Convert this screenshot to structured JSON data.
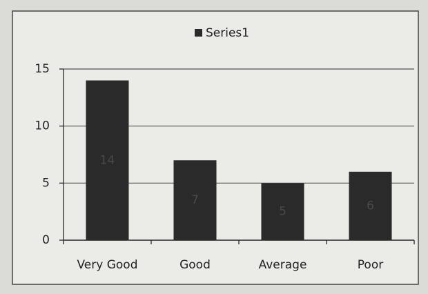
{
  "chart_data": {
    "type": "bar",
    "legend_position": "top",
    "categories": [
      "Very Good",
      "Good",
      "Average",
      "Poor"
    ],
    "series": [
      {
        "name": "Series1",
        "color": "#2a2a2a",
        "values": [
          14,
          7,
          5,
          6
        ]
      }
    ],
    "ylim": [
      0,
      15
    ],
    "yticks": [
      0,
      5,
      10,
      15
    ],
    "grid": true,
    "data_labels": true
  }
}
